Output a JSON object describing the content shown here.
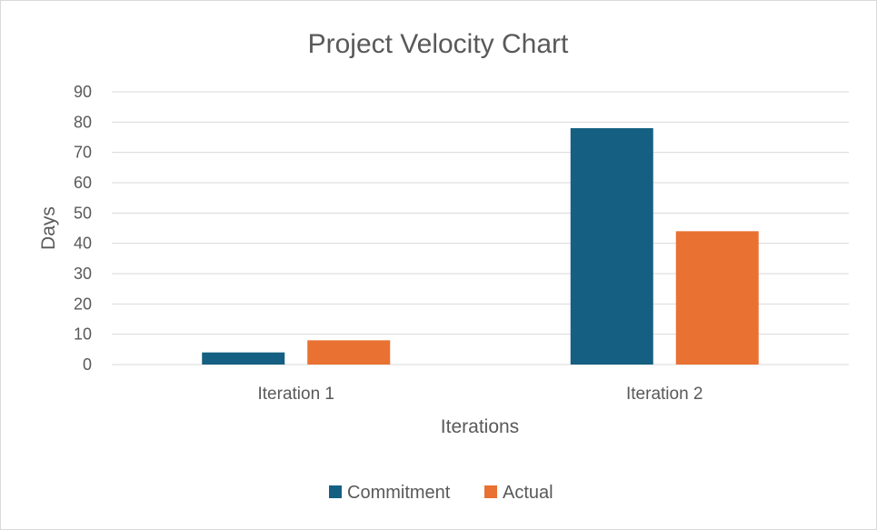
{
  "chart_data": {
    "type": "bar",
    "title": "Project Velocity Chart",
    "xlabel": "Iterations",
    "ylabel": "Days",
    "categories": [
      "Iteration 1",
      "Iteration 2"
    ],
    "series": [
      {
        "name": "Commitment",
        "color": "#156082",
        "values": [
          4,
          78
        ]
      },
      {
        "name": "Actual",
        "color": "#e97132",
        "values": [
          8,
          44
        ]
      }
    ],
    "ylim": [
      0,
      90
    ],
    "yticks": [
      0,
      10,
      20,
      30,
      40,
      50,
      60,
      70,
      80,
      90
    ],
    "grid": true,
    "legend_position": "bottom"
  }
}
